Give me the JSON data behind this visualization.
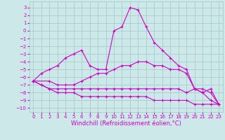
{
  "xlabel": "Windchill (Refroidissement éolien,°C)",
  "bg_color": "#cce8e8",
  "grid_color": "#aacccc",
  "line_color": "#cc00cc",
  "x_ticks": [
    0,
    1,
    2,
    3,
    4,
    5,
    6,
    7,
    8,
    9,
    10,
    11,
    12,
    13,
    14,
    15,
    16,
    17,
    18,
    19,
    20,
    21,
    22,
    23
  ],
  "y_ticks": [
    -10,
    -9,
    -8,
    -7,
    -6,
    -5,
    -4,
    -3,
    -2,
    -1,
    0,
    1,
    2,
    3
  ],
  "ylim": [
    -10.5,
    3.8
  ],
  "xlim": [
    -0.5,
    23.5
  ],
  "lines": [
    {
      "x": [
        0,
        1,
        2,
        3,
        4,
        5,
        6,
        7,
        8,
        9,
        10,
        11,
        12,
        13,
        14,
        15,
        16,
        17,
        18,
        19,
        20,
        21,
        22,
        23
      ],
      "y": [
        -6.5,
        -5.5,
        -5.0,
        -4.5,
        -3.5,
        -3.0,
        -2.5,
        -4.5,
        -5.0,
        -5.0,
        0.0,
        0.5,
        3.0,
        2.7,
        0.5,
        -1.5,
        -2.5,
        -3.5,
        -4.5,
        -5.0,
        -7.5,
        -8.0,
        -7.5,
        -9.5
      ]
    },
    {
      "x": [
        0,
        2,
        3,
        4,
        5,
        6,
        7,
        8,
        9,
        10,
        11,
        12,
        13,
        14,
        15,
        16,
        17,
        18,
        19,
        20,
        21,
        22,
        23
      ],
      "y": [
        -6.5,
        -6.5,
        -7.0,
        -7.0,
        -7.0,
        -6.5,
        -6.0,
        -5.5,
        -5.5,
        -5.0,
        -4.5,
        -4.5,
        -4.0,
        -4.0,
        -4.5,
        -4.5,
        -5.0,
        -5.0,
        -5.5,
        -7.5,
        -7.5,
        -8.0,
        -9.5
      ]
    },
    {
      "x": [
        0,
        1,
        2,
        3,
        4,
        5,
        6,
        7,
        8,
        9,
        10,
        11,
        12,
        13,
        14,
        15,
        16,
        17,
        18,
        19,
        20,
        21,
        22,
        23
      ],
      "y": [
        -6.5,
        -7.0,
        -7.5,
        -7.5,
        -7.5,
        -7.5,
        -7.5,
        -7.5,
        -7.5,
        -7.5,
        -7.5,
        -7.5,
        -7.5,
        -7.5,
        -7.5,
        -7.5,
        -7.5,
        -7.5,
        -7.5,
        -8.0,
        -7.5,
        -8.0,
        -9.0,
        -9.5
      ]
    },
    {
      "x": [
        0,
        1,
        2,
        3,
        4,
        5,
        6,
        7,
        8,
        9,
        10,
        11,
        12,
        13,
        14,
        15,
        16,
        17,
        18,
        19,
        20,
        21,
        22,
        23
      ],
      "y": [
        -6.5,
        -7.0,
        -7.5,
        -8.0,
        -8.0,
        -8.0,
        -8.5,
        -8.5,
        -8.5,
        -8.5,
        -8.5,
        -8.5,
        -8.5,
        -8.5,
        -8.5,
        -9.0,
        -9.0,
        -9.0,
        -9.0,
        -9.0,
        -9.5,
        -9.5,
        -9.5,
        -9.5
      ]
    }
  ],
  "tick_fontsize": 5,
  "xlabel_fontsize": 6
}
